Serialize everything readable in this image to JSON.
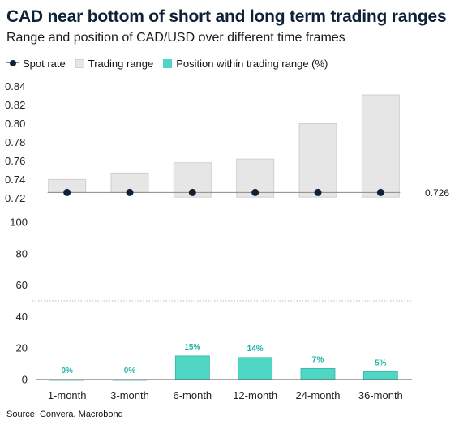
{
  "title": "CAD near bottom of short and long term trading ranges",
  "subtitle": "Range and position of CAD/USD over different time frames",
  "legend": {
    "spot": "Spot rate",
    "range": "Trading range",
    "position": "Position within trading range (%)"
  },
  "source": "Source: Convera, Macrobond",
  "colors": {
    "spot": "#0f2137",
    "range_fill": "#e6e6e6",
    "range_stroke": "#cfcfcf",
    "position_fill": "#4fd6c4",
    "position_stroke": "#2fb8a6",
    "label_color": "#1fb5a3"
  },
  "chart_data": [
    {
      "type": "bar",
      "categories": [
        "1-month",
        "3-month",
        "6-month",
        "12-month",
        "24-month",
        "36-month"
      ],
      "series": [
        {
          "name": "Trading range",
          "low": [
            0.726,
            0.726,
            0.721,
            0.721,
            0.721,
            0.721
          ],
          "high": [
            0.74,
            0.747,
            0.758,
            0.762,
            0.8,
            0.831
          ]
        },
        {
          "name": "Spot rate",
          "values": [
            0.726,
            0.726,
            0.726,
            0.726,
            0.726,
            0.726
          ]
        }
      ],
      "ylim": [
        0.715,
        0.845
      ],
      "yticks": [
        "0.84",
        "0.82",
        "0.80",
        "0.78",
        "0.76",
        "0.74",
        "0.72"
      ],
      "spot_label": "0.726",
      "grid": false
    },
    {
      "type": "bar",
      "categories": [
        "1-month",
        "3-month",
        "6-month",
        "12-month",
        "24-month",
        "36-month"
      ],
      "series": [
        {
          "name": "Position within trading range (%)",
          "values": [
            0,
            0,
            15,
            14,
            7,
            5
          ],
          "labels": [
            "0%",
            "0%",
            "15%",
            "14%",
            "7%",
            "5%"
          ]
        }
      ],
      "ylim": [
        0,
        100
      ],
      "yticks": [
        "100",
        "80",
        "60",
        "40",
        "20",
        "0"
      ],
      "reference_line": 50,
      "xticks": [
        "1-month",
        "3-month",
        "6-month",
        "12-month",
        "24-month",
        "36-month"
      ]
    }
  ]
}
